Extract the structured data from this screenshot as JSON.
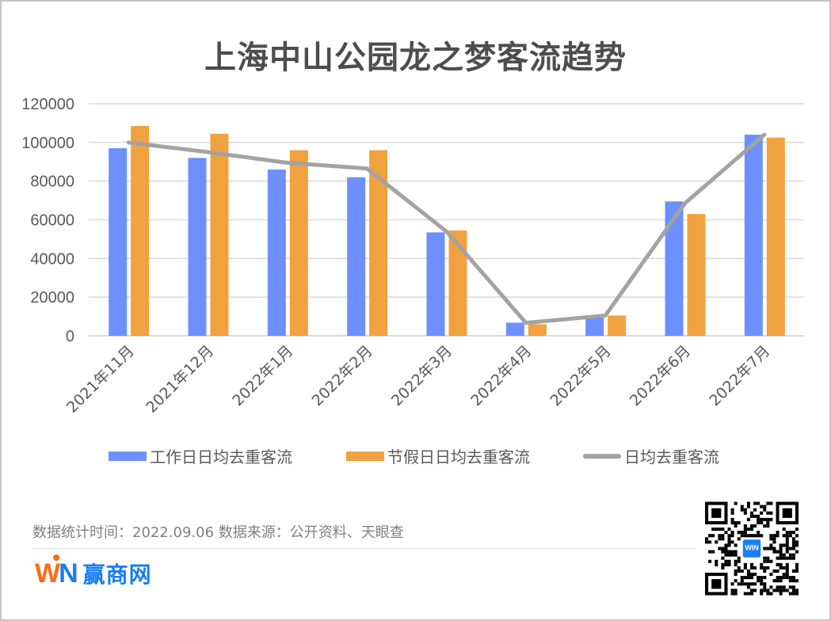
{
  "title": "上海中山公园龙之梦客流趋势",
  "colors": {
    "workday": "#6E90FF",
    "holiday": "#F0A240",
    "average": "#A3A3A3",
    "grid": "#D9D9D9",
    "axis_text": "#595959"
  },
  "legend": {
    "items": [
      {
        "label": "工作日日均去重客流",
        "type": "bar",
        "color": "#6E90FF"
      },
      {
        "label": "节假日日均去重客流",
        "type": "bar",
        "color": "#F0A240"
      },
      {
        "label": "日均去重客流",
        "type": "line",
        "color": "#A3A3A3"
      }
    ]
  },
  "footer": {
    "note": "数据统计时间：2022.09.06  数据来源：公开资料、天眼查",
    "logo_mark": "WIN",
    "logo_text": "赢商网",
    "qr_badge": "WIN"
  },
  "chart_data": {
    "type": "bar",
    "title": "上海中山公园龙之梦客流趋势",
    "xlabel": "",
    "ylabel": "",
    "ylim": [
      0,
      120000
    ],
    "yticks": [
      0,
      20000,
      40000,
      60000,
      80000,
      100000,
      120000
    ],
    "ytick_labels": [
      "0",
      "20000",
      "40000",
      "60000",
      "80000",
      "100000",
      "120000"
    ],
    "grid": true,
    "legend_position": "bottom",
    "categories": [
      "2021年11月",
      "2021年12月",
      "2022年1月",
      "2022年2月",
      "2022年3月",
      "2022年4月",
      "2022年5月",
      "2022年6月",
      "2022年7月"
    ],
    "series": [
      {
        "name": "工作日日均去重客流",
        "type": "bar",
        "values": [
          97000,
          92000,
          86000,
          82000,
          53500,
          6800,
          9500,
          69500,
          104000
        ]
      },
      {
        "name": "节假日日均去重客流",
        "type": "bar",
        "values": [
          108500,
          104500,
          96000,
          96000,
          54500,
          6000,
          10500,
          63000,
          102500
        ]
      },
      {
        "name": "日均去重客流",
        "type": "line",
        "values": [
          100000,
          95000,
          89500,
          86500,
          54000,
          6700,
          10500,
          68500,
          104000
        ]
      }
    ]
  }
}
